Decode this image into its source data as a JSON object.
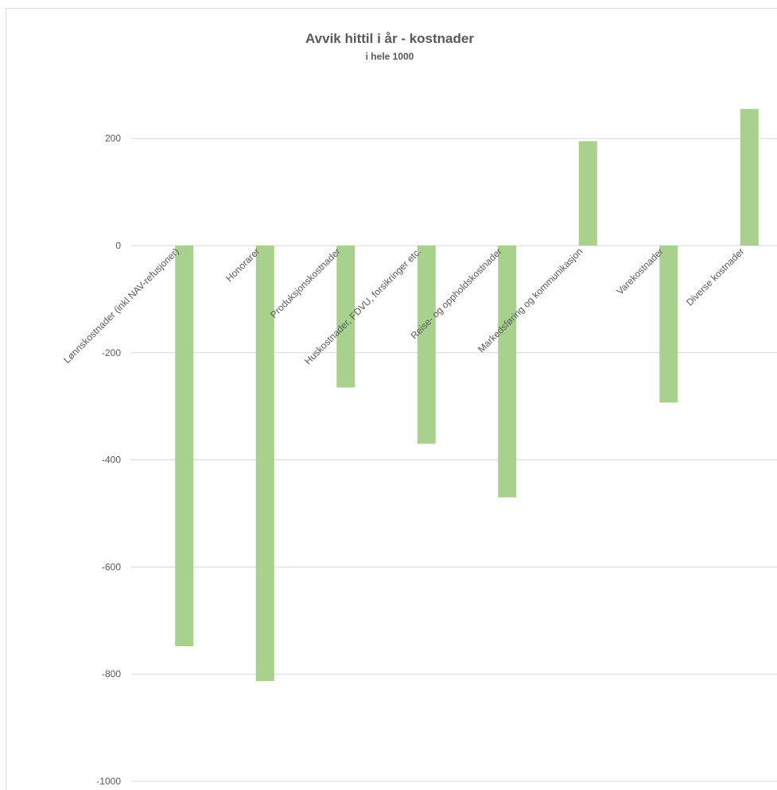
{
  "chart_data": {
    "type": "bar",
    "title": "Avvik hittil i år - kostnader",
    "subtitle": "i hele 1000",
    "xlabel": "",
    "ylabel": "",
    "categories": [
      "Lønnskostnader (inkl NAV-refusjoner)",
      "Honorarer",
      "Produksjonskostnader",
      "Huskostnader, FDVU, forsikringer etc.",
      "Reise- og oppholdskostnader",
      "Markedsføring og kommunikasjon",
      "Varekostnader",
      "Diverse kostnader"
    ],
    "values": [
      -748,
      -813,
      -265,
      -370,
      -470,
      195,
      -293,
      255
    ],
    "ylim": [
      -1000,
      200
    ],
    "yticks": [
      -1000,
      -800,
      -600,
      -400,
      -200,
      0,
      200
    ],
    "grid": true,
    "colors": {
      "bar": "#a9d18e",
      "grid": "#d9d9d9",
      "title": "#595959",
      "tick": "#595959"
    }
  }
}
